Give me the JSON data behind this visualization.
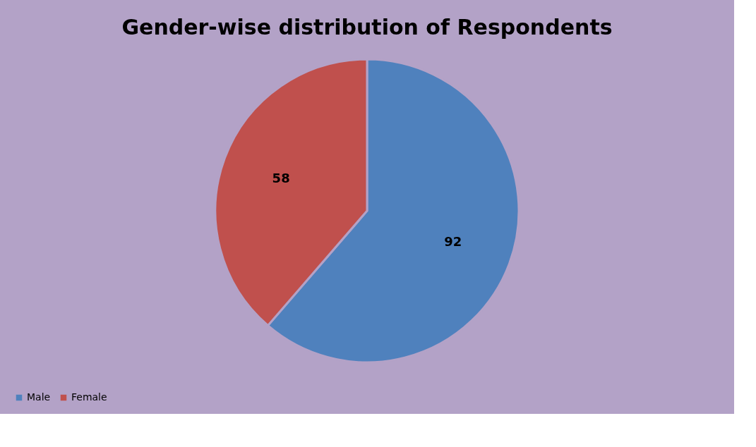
{
  "chart_data": {
    "type": "pie",
    "title": "Gender-wise distribution of Respondents",
    "categories": [
      "Male",
      "Female"
    ],
    "values": [
      92,
      58
    ],
    "colors": [
      "#4f81bd",
      "#c0504d"
    ],
    "data_labels": true,
    "legend": "bottom"
  }
}
